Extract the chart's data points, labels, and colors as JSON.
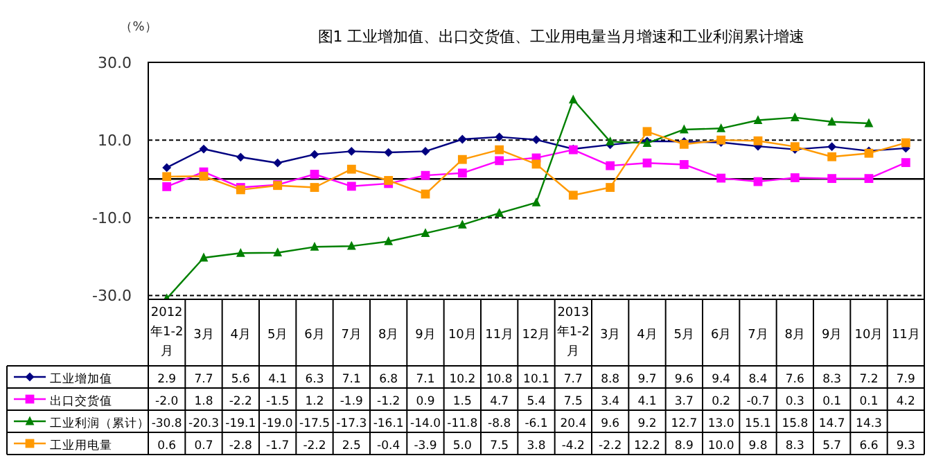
{
  "chart_data": {
    "type": "line",
    "title": "图1 工业增加值、出口交货值、工业用电量当月增速和工业利润累计增速",
    "ylabel": "（%）",
    "categories": [
      "2012年1-2月",
      "3月",
      "4月",
      "5月",
      "6月",
      "7月",
      "8月",
      "9月",
      "10月",
      "11月",
      "12月",
      "2013年1-2月",
      "3月",
      "4月",
      "5月",
      "6月",
      "7月",
      "8月",
      "9月",
      "10月",
      "11月"
    ],
    "series": [
      {
        "name": "工业增加值",
        "color": "#000080",
        "marker": "diamond",
        "values": [
          2.9,
          7.7,
          5.6,
          4.1,
          6.3,
          7.1,
          6.8,
          7.1,
          10.2,
          10.8,
          10.1,
          7.7,
          8.8,
          9.7,
          9.6,
          9.4,
          8.4,
          7.6,
          8.3,
          7.2,
          7.9
        ],
        "value_labels": [
          "2.9",
          "7.7",
          "5.6",
          "4.1",
          "6.3",
          "7.1",
          "6.8",
          "7.1",
          "10.2",
          "10.8",
          "10.1",
          "7.7",
          "8.8",
          "9.7",
          "9.6",
          "9.4",
          "8.4",
          "7.6",
          "8.3",
          "7.2",
          "7.9"
        ]
      },
      {
        "name": "出口交货值",
        "color": "#ff00ff",
        "marker": "square",
        "values": [
          -2.0,
          1.8,
          -2.2,
          -1.5,
          1.2,
          -1.9,
          -1.2,
          0.9,
          1.5,
          4.7,
          5.4,
          7.5,
          3.4,
          4.1,
          3.7,
          0.2,
          -0.7,
          0.3,
          0.1,
          0.1,
          4.2
        ],
        "value_labels": [
          "-2.0",
          "1.8",
          "-2.2",
          "-1.5",
          "1.2",
          "-1.9",
          "-1.2",
          "0.9",
          "1.5",
          "4.7",
          "5.4",
          "7.5",
          "3.4",
          "4.1",
          "3.7",
          "0.2",
          "-0.7",
          "0.3",
          "0.1",
          "0.1",
          "4.2"
        ]
      },
      {
        "name": "工业利润（累计）",
        "color": "#008000",
        "marker": "triangle",
        "values": [
          -30.8,
          -20.3,
          -19.1,
          -19.0,
          -17.5,
          -17.3,
          -16.1,
          -14.0,
          -11.8,
          -8.8,
          -6.1,
          20.4,
          9.6,
          9.2,
          12.7,
          13.0,
          15.1,
          15.8,
          14.7,
          14.3,
          null
        ],
        "value_labels": [
          "-30.8",
          "-20.3",
          "-19.1",
          "-19.0",
          "-17.5",
          "-17.3",
          "-16.1",
          "-14.0",
          "-11.8",
          "-8.8",
          "-6.1",
          "20.4",
          "9.6",
          "9.2",
          "12.7",
          "13.0",
          "15.1",
          "15.8",
          "14.7",
          "14.3",
          null
        ]
      },
      {
        "name": "工业用电量",
        "color": "#ff9900",
        "marker": "square",
        "values": [
          0.6,
          0.7,
          -2.8,
          -1.7,
          -2.2,
          2.5,
          -0.4,
          -3.9,
          5.0,
          7.5,
          3.8,
          -4.2,
          -2.2,
          12.2,
          8.9,
          10.0,
          9.8,
          8.3,
          5.7,
          6.6,
          9.3
        ],
        "value_labels": [
          "0.6",
          "0.7",
          "-2.8",
          "-1.7",
          "-2.2",
          "2.5",
          "-0.4",
          "-3.9",
          "5.0",
          "7.5",
          "3.8",
          "-4.2",
          "-2.2",
          "12.2",
          "8.9",
          "10.0",
          "9.8",
          "8.3",
          "5.7",
          "6.6",
          "9.3"
        ]
      }
    ],
    "ylim": [
      -31,
      30
    ],
    "yticks": [
      {
        "value": 30,
        "label": "30.0"
      },
      {
        "value": 10,
        "label": "10.0"
      },
      {
        "value": -10,
        "label": "-10.0"
      },
      {
        "value": -30,
        "label": "-30.0"
      }
    ],
    "grid": "y",
    "line_style": "solid",
    "legend": "bottom",
    "ref_lines": [
      {
        "axis": "y",
        "value": 0,
        "color": "#000000",
        "line_style": "solid"
      }
    ]
  }
}
